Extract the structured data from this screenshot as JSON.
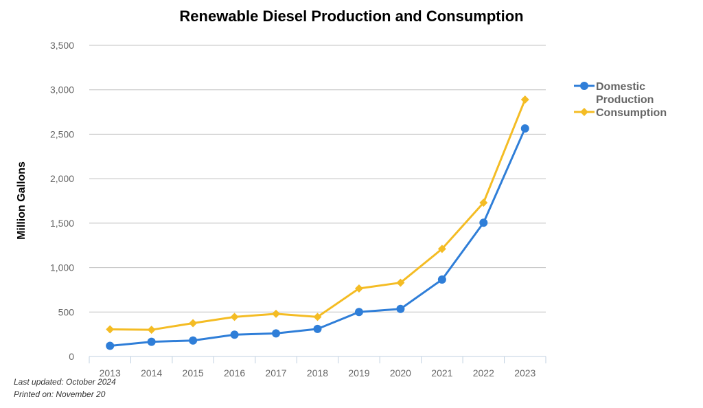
{
  "chart_data": {
    "type": "line",
    "title": "Renewable Diesel Production and Consumption",
    "xlabel": "",
    "ylabel": "Million Gallons",
    "categories": [
      "2013",
      "2014",
      "2015",
      "2016",
      "2017",
      "2018",
      "2019",
      "2020",
      "2021",
      "2022",
      "2023"
    ],
    "ylim": [
      0,
      3500
    ],
    "yticks": [
      0,
      500,
      1000,
      1500,
      2000,
      2500,
      3000,
      3500
    ],
    "ytick_labels": [
      "0",
      "500",
      "1,000",
      "1,500",
      "2,000",
      "2,500",
      "3,000",
      "3,500"
    ],
    "grid": true,
    "legend_position": "right",
    "series": [
      {
        "name": "Domestic Production",
        "name_lines": [
          "Domestic",
          "Production"
        ],
        "color": "#2f7ed8",
        "marker": "circle",
        "values": [
          120,
          165,
          180,
          245,
          260,
          310,
          500,
          535,
          865,
          1505,
          2565
        ]
      },
      {
        "name": "Consumption",
        "name_lines": [
          "Consumption"
        ],
        "color": "#f4bc24",
        "marker": "diamond",
        "values": [
          305,
          300,
          375,
          445,
          480,
          445,
          765,
          830,
          1210,
          1730,
          2890
        ]
      }
    ]
  },
  "footer": {
    "last_updated": "Last updated: October 2024",
    "printed_on": "Printed on: November 20"
  }
}
